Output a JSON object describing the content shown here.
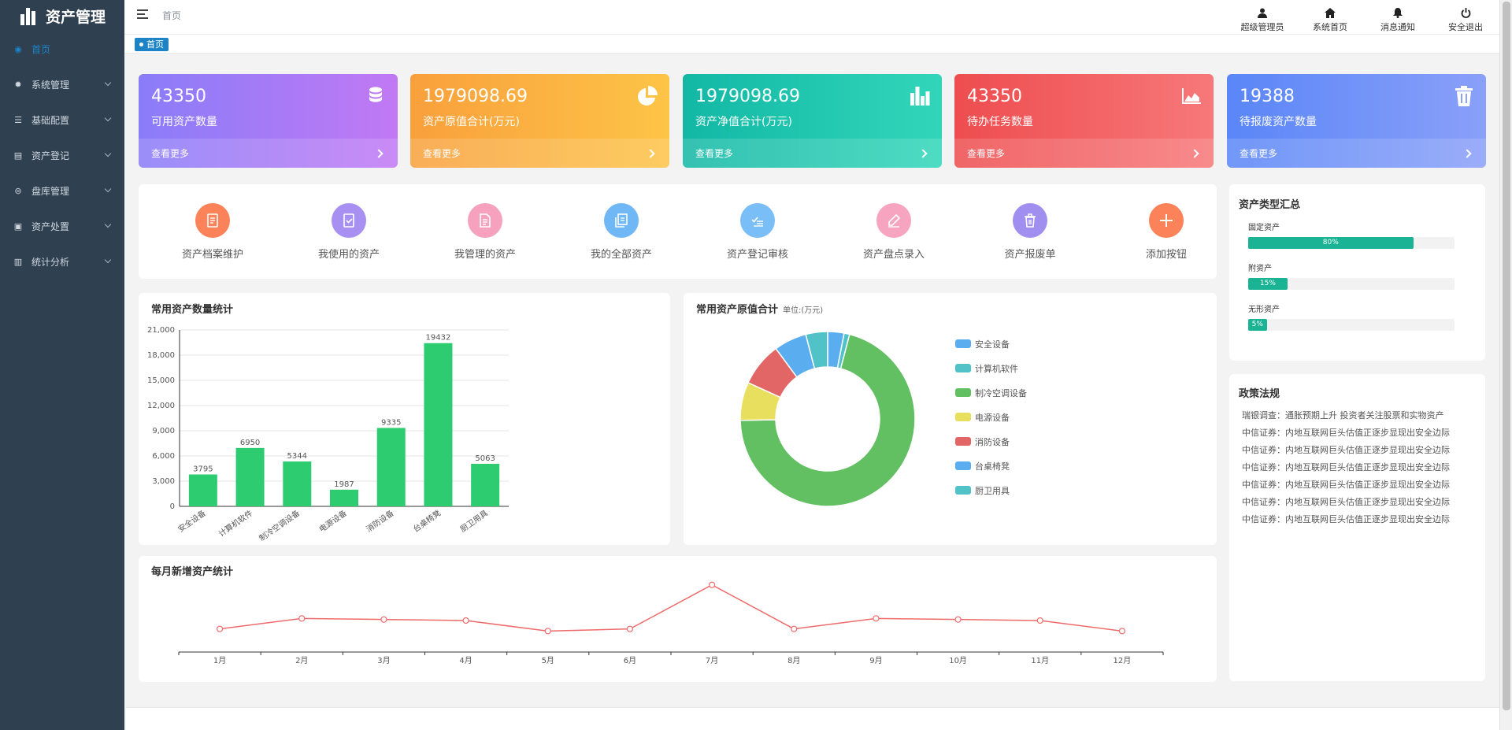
{
  "app": {
    "title": "资产管理"
  },
  "sidebar": {
    "items": [
      {
        "label": "首页",
        "icon": "dashboard-icon",
        "active": true
      },
      {
        "label": "系统管理",
        "icon": "gear-icon"
      },
      {
        "label": "基础配置",
        "icon": "list-icon"
      },
      {
        "label": "资产登记",
        "icon": "document-icon"
      },
      {
        "label": "盘库管理",
        "icon": "inventory-icon"
      },
      {
        "label": "资产处置",
        "icon": "lock-icon"
      },
      {
        "label": "统计分析",
        "icon": "bar-chart-icon"
      }
    ]
  },
  "header": {
    "breadcrumb": "首页",
    "actions": [
      {
        "label": "超级管理员",
        "icon": "user-icon"
      },
      {
        "label": "系统首页",
        "icon": "home-icon"
      },
      {
        "label": "消息通知",
        "icon": "bell-icon"
      },
      {
        "label": "安全退出",
        "icon": "power-icon"
      }
    ],
    "tab": "首页"
  },
  "stats": [
    {
      "value": "43350",
      "label": "可用资产数量",
      "more": "查看更多",
      "icon": "database-icon",
      "gradient": [
        "#8a7cf8",
        "#c179f4"
      ]
    },
    {
      "value": "1979098.69",
      "label": "资产原值合计(万元)",
      "more": "查看更多",
      "icon": "pie-chart-icon",
      "gradient": [
        "#f9a03c",
        "#fdc447"
      ]
    },
    {
      "value": "1979098.69",
      "label": "资产净值合计(万元)",
      "more": "查看更多",
      "icon": "bar-chart-icon",
      "gradient": [
        "#13b8a5",
        "#31d6ba"
      ]
    },
    {
      "value": "43350",
      "label": "待办任务数量",
      "more": "查看更多",
      "icon": "area-chart-icon",
      "gradient": [
        "#ee4d4f",
        "#f7787a"
      ]
    },
    {
      "value": "19388",
      "label": "待报废资产数量",
      "more": "查看更多",
      "icon": "trash-icon",
      "gradient": [
        "#5a86f7",
        "#8aa0f9"
      ]
    }
  ],
  "quick": [
    {
      "label": "资产档案维护",
      "color": "#fb8259",
      "icon": "file-icon"
    },
    {
      "label": "我使用的资产",
      "color": "#a790f2",
      "icon": "checklist-icon"
    },
    {
      "label": "我管理的资产",
      "color": "#f6a2bf",
      "icon": "file-text-icon"
    },
    {
      "label": "我的全部资产",
      "color": "#6fb7f5",
      "icon": "copy-icon"
    },
    {
      "label": "资产登记审核",
      "color": "#79bef7",
      "icon": "audit-icon"
    },
    {
      "label": "资产盘点录入",
      "color": "#f7a4c0",
      "icon": "pencil-icon"
    },
    {
      "label": "资产报废单",
      "color": "#a18ff0",
      "icon": "trash-icon"
    },
    {
      "label": "添加按钮",
      "color": "#fb8259",
      "icon": "plus-icon"
    }
  ],
  "asset_types": {
    "title": "资产类型汇总",
    "items": [
      {
        "label": "固定资产",
        "percent": 80,
        "text": "80%"
      },
      {
        "label": "附资产",
        "percent": 15,
        "text": "15%"
      },
      {
        "label": "无形资产",
        "percent": 5,
        "text": "5%"
      }
    ]
  },
  "policy": {
    "title": "政策法规",
    "items": [
      "瑞银调查：通胀预期上升 投资者关注股票和实物资产",
      "中信证券：内地互联网巨头估值正逐步显现出安全边际",
      "中信证券：内地互联网巨头估值正逐步显现出安全边际",
      "中信证券：内地互联网巨头估值正逐步显现出安全边际",
      "中信证券：内地互联网巨头估值正逐步显现出安全边际",
      "中信证券：内地互联网巨头估值正逐步显现出安全边际",
      "中信证券：内地互联网巨头估值正逐步显现出安全边际"
    ]
  },
  "chart_titles": {
    "bar": "常用资产数量统计",
    "pie": "常用资产原值合计",
    "pie_unit": "单位:(万元)",
    "line": "每月新增资产统计"
  },
  "chart_data": [
    {
      "type": "bar",
      "categories": [
        "安全设备",
        "计算机软件",
        "制冷空调设备",
        "电源设备",
        "消防设备",
        "台桌椅凳",
        "厨卫用具"
      ],
      "values": [
        3795,
        6950,
        5344,
        1987,
        9335,
        19432,
        5063
      ],
      "ylim": [
        0,
        21000
      ],
      "yticks": [
        0,
        3000,
        6000,
        9000,
        12000,
        15000,
        18000,
        21000
      ],
      "ytick_labels": [
        "0",
        "3,000",
        "6,000",
        "9,000",
        "12,000",
        "15,000",
        "18,000",
        "21,000"
      ],
      "color": "#2ecc71",
      "grid": true
    },
    {
      "type": "pie",
      "donut": true,
      "labels": [
        "安全设备",
        "计算机软件",
        "制冷空调设备",
        "电源设备",
        "消防设备",
        "台桌椅凳",
        "厨卫用具"
      ],
      "values": [
        3,
        1,
        70,
        7,
        8,
        6,
        4
      ],
      "colors": [
        "#5aaef0",
        "#50c2c8",
        "#62c062",
        "#e8df5e",
        "#e36666",
        "#5aaef0",
        "#50c2c8"
      ],
      "legend": "right"
    },
    {
      "type": "line",
      "categories": [
        "1月",
        "2月",
        "3月",
        "4月",
        "5月",
        "6月",
        "7月",
        "8月",
        "9月",
        "10月",
        "11月",
        "12月"
      ],
      "values": [
        11,
        16,
        15.5,
        15,
        10,
        11,
        32,
        11,
        16,
        15.5,
        15,
        10
      ],
      "ylim": [
        0,
        36
      ],
      "color": "#ef6b6b"
    }
  ]
}
